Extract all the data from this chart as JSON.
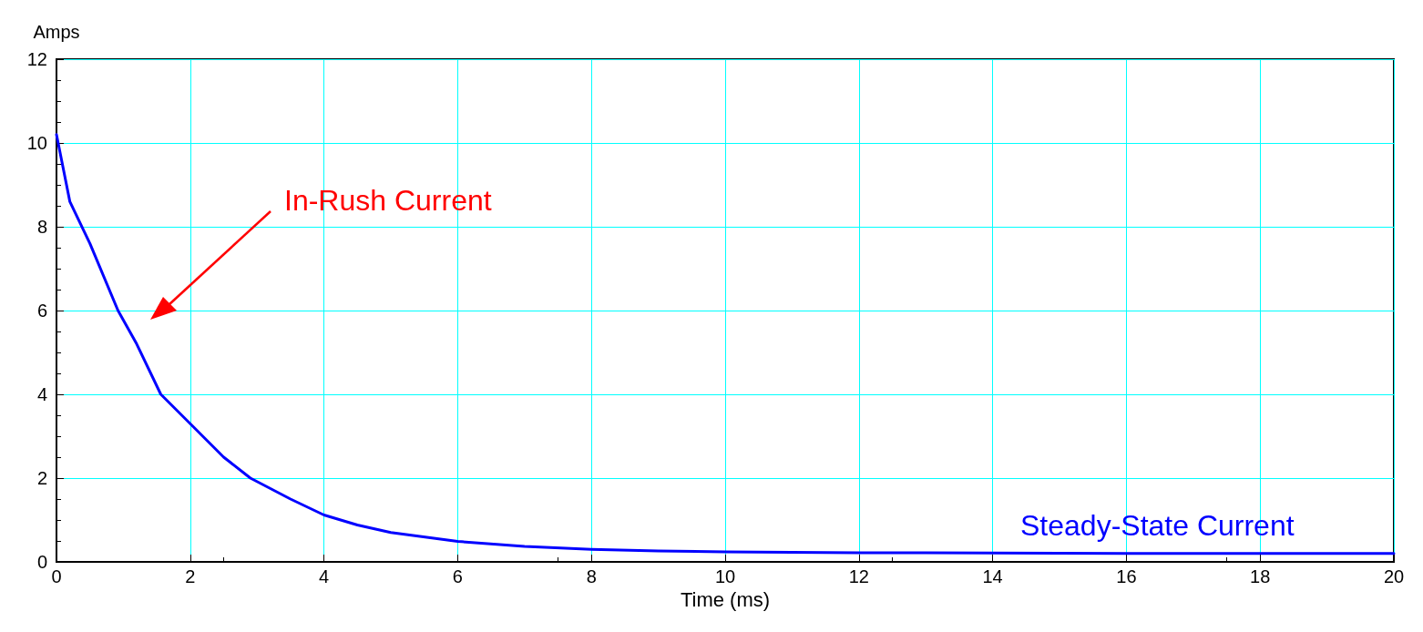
{
  "chart_data": {
    "type": "line",
    "xlabel": "Time (ms)",
    "ylabel": "Amps",
    "x": [
      0,
      0.2,
      0.5,
      0.92,
      1.2,
      1.56,
      2,
      2.5,
      2.9,
      3.5,
      4,
      4.5,
      5,
      6,
      7,
      8,
      9,
      10,
      12,
      14,
      16,
      18,
      20
    ],
    "series": [
      {
        "color": "#0000ff",
        "values": [
          10.2,
          8.6,
          7.6,
          6.0,
          5.2,
          4.0,
          3.3,
          2.5,
          2.0,
          1.5,
          1.12,
          0.88,
          0.7,
          0.49,
          0.37,
          0.3,
          0.26,
          0.24,
          0.22,
          0.21,
          0.2,
          0.2,
          0.2
        ]
      }
    ],
    "xlim": [
      0,
      20
    ],
    "xticks": [
      0,
      2,
      4,
      6,
      8,
      10,
      12,
      14,
      16,
      18,
      20
    ],
    "ylim": [
      0,
      12
    ],
    "yticks": [
      0,
      2,
      4,
      6,
      8,
      10,
      12
    ],
    "grid": true,
    "marker": "none",
    "line_style": "solid",
    "annotations": [
      "In-Rush Current",
      "Steady-State Current"
    ]
  }
}
